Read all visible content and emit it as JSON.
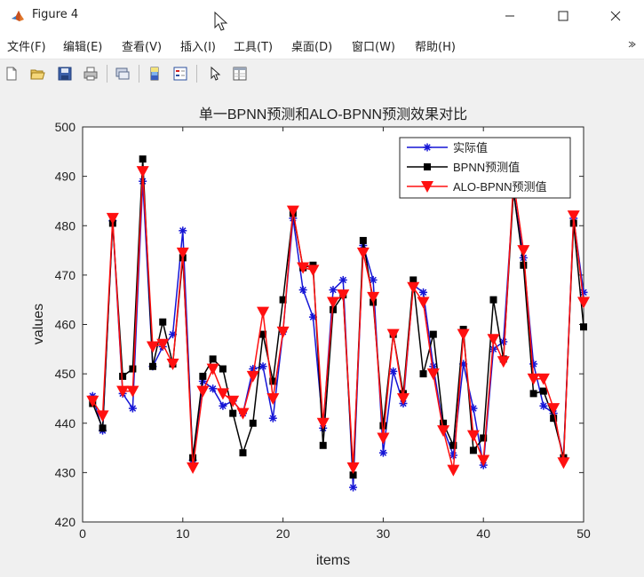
{
  "window": {
    "title": "Figure 4",
    "minimize_icon": "minimize-icon",
    "maximize_icon": "maximize-icon",
    "close_icon": "close-icon"
  },
  "menubar": {
    "items": [
      {
        "label": "文件(F)"
      },
      {
        "label": "编辑(E)"
      },
      {
        "label": "查看(V)"
      },
      {
        "label": "插入(I)"
      },
      {
        "label": "工具(T)"
      },
      {
        "label": "桌面(D)"
      },
      {
        "label": "窗口(W)"
      },
      {
        "label": "帮助(H)"
      }
    ]
  },
  "toolbar": {
    "icons": [
      "new-figure-icon",
      "open-file-icon",
      "save-icon",
      "print-icon",
      "link-plot-icon",
      "insert-colorbar-icon",
      "insert-legend-icon",
      "edit-plot-icon",
      "property-inspector-icon"
    ]
  },
  "chart_data": {
    "type": "line",
    "title": "单一BPNN预测和ALO-BPNN预测效果对比",
    "xlabel": "items",
    "ylabel": "values",
    "xlim": [
      0,
      50
    ],
    "ylim": [
      420,
      500
    ],
    "xticks": [
      "0",
      "10",
      "20",
      "30",
      "40",
      "50"
    ],
    "yticks": [
      "420",
      "430",
      "440",
      "450",
      "460",
      "470",
      "480",
      "490",
      "500"
    ],
    "grid": false,
    "legend_position": "top-right",
    "x": [
      1,
      2,
      3,
      4,
      5,
      6,
      7,
      8,
      9,
      10,
      11,
      12,
      13,
      14,
      15,
      16,
      17,
      18,
      19,
      20,
      21,
      22,
      23,
      24,
      25,
      26,
      27,
      28,
      29,
      30,
      31,
      32,
      33,
      34,
      35,
      36,
      37,
      38,
      39,
      40,
      41,
      42,
      43,
      44,
      45,
      46,
      47,
      48,
      49,
      50
    ],
    "series": [
      {
        "name": "实际值",
        "color": "#1515d6",
        "marker": "star",
        "values": [
          445.5,
          438.5,
          481,
          446,
          443,
          489,
          451.5,
          455.5,
          458,
          479,
          432.5,
          448.5,
          447,
          443.5,
          444.5,
          442,
          451,
          451.5,
          441,
          458.5,
          481.5,
          467,
          461.5,
          439,
          467,
          469,
          427,
          476,
          469,
          434,
          450.5,
          444,
          468,
          466.5,
          451.5,
          439,
          433.5,
          452,
          443,
          431.5,
          455,
          456.5,
          487,
          473.5,
          452,
          443.5,
          442,
          433,
          481.5,
          466.5
        ]
      },
      {
        "name": "BPNN预测值",
        "color": "#000000",
        "marker": "square",
        "values": [
          444,
          439,
          480.5,
          449.5,
          451,
          493.5,
          451.5,
          460.5,
          452,
          473.5,
          433,
          449.5,
          453,
          451,
          442,
          434,
          440,
          458,
          448.5,
          465,
          482.5,
          471.5,
          472,
          435.5,
          463,
          466,
          429.5,
          477,
          464.5,
          439.5,
          458,
          446,
          469,
          450,
          458,
          440,
          435.5,
          459,
          434.5,
          437,
          465,
          453,
          487,
          472,
          446,
          446.5,
          441,
          433,
          480.5,
          459.5
        ]
      },
      {
        "name": "ALO-BPNN预测值",
        "color": "#ff1010",
        "marker": "triangle-down",
        "values": [
          444.5,
          441.5,
          481.5,
          446.5,
          446.5,
          491,
          455.5,
          456,
          452,
          474.5,
          431,
          446.5,
          451,
          446,
          444.5,
          442,
          449.5,
          462.5,
          445,
          458.5,
          483,
          471.5,
          471,
          440,
          464.5,
          466,
          431,
          474.5,
          465.5,
          437,
          458,
          445,
          467.5,
          464.5,
          450,
          438.5,
          430.5,
          458,
          437.5,
          432.5,
          457,
          452.5,
          489,
          475,
          449,
          449,
          443,
          432,
          482,
          464.5
        ]
      }
    ]
  }
}
